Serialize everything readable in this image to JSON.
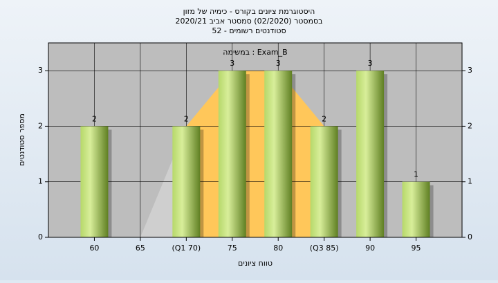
{
  "chart_data": {
    "type": "bar",
    "title": [
      "היסטוגרמת ציונים בקורס - כימיה של מזון",
      "בסמסטר  (02/2020)  סמסטר אביב 2020/21",
      "סטודנטים רשומים - 52"
    ],
    "annotation": "במשימה : Exam_B",
    "x_label": "טווח ציונים",
    "y_label": "מספר סטודנטים",
    "categories": [
      "60",
      "65",
      "(Q1 70)",
      "75",
      "80",
      "(Q3 85)",
      "90",
      "95"
    ],
    "values": [
      2,
      0,
      2,
      3,
      3,
      2,
      3,
      1
    ],
    "color": "#9cc24a",
    "ylim": [
      0,
      3.5
    ],
    "yticks": [
      0,
      1,
      2,
      3
    ],
    "y2lim": [
      0,
      3.5
    ],
    "y2ticks": [
      0,
      1,
      2,
      3
    ],
    "grid": true
  }
}
